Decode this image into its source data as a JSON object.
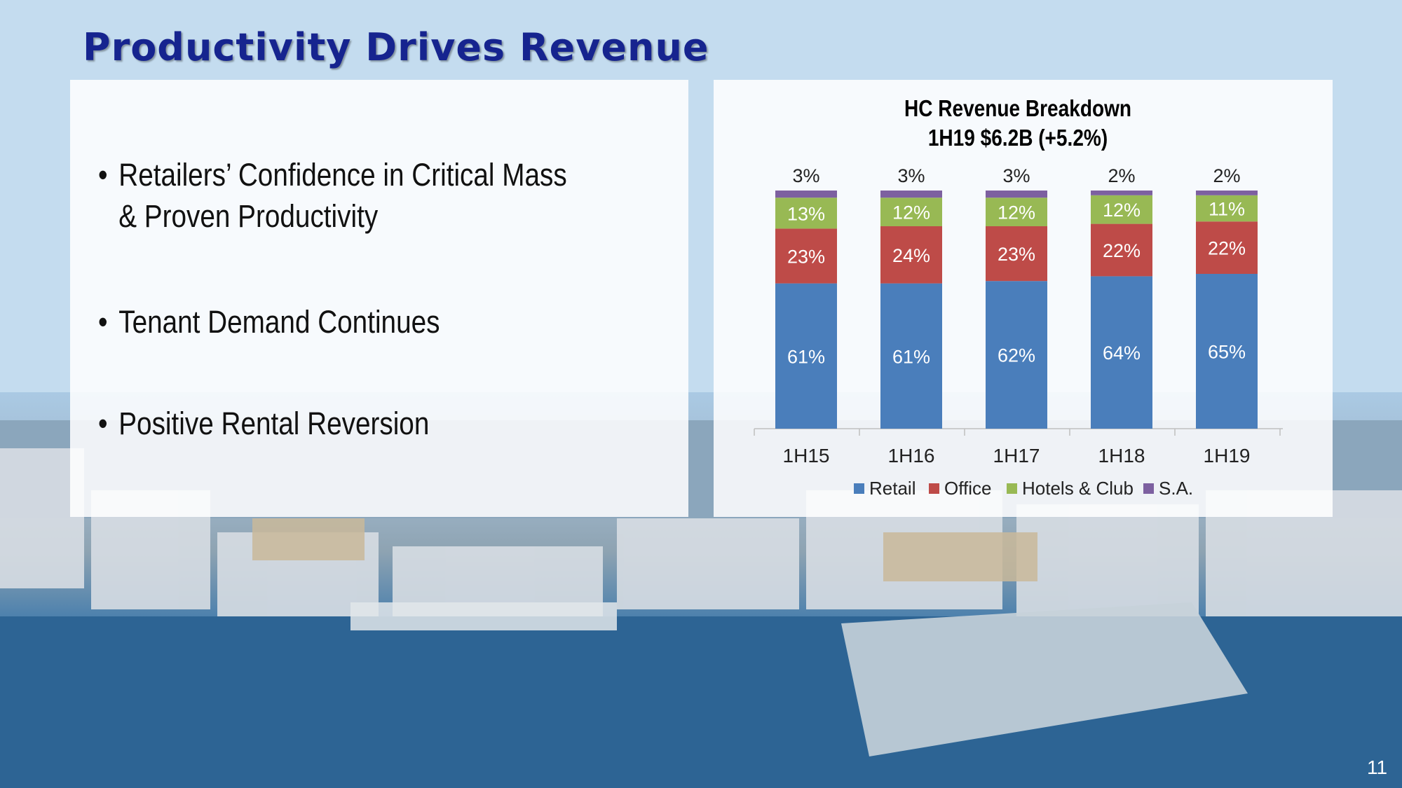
{
  "slide": {
    "title": "Productivity Drives Revenue",
    "page_number": "11"
  },
  "bullets": [
    {
      "text": "Retailers’ Confidence in Critical Mass & Proven Productivity"
    },
    {
      "text": "Tenant Demand Continues"
    },
    {
      "text": "Positive Rental Reversion"
    }
  ],
  "chart_data": {
    "type": "bar",
    "stacked": true,
    "title": "HC Revenue Breakdown",
    "subtitle": "1H19 $6.2B (+5.2%)",
    "categories": [
      "1H15",
      "1H16",
      "1H17",
      "1H18",
      "1H19"
    ],
    "value_unit": "%",
    "ylim": [
      0,
      100
    ],
    "grid": false,
    "legend_position": "bottom",
    "series": [
      {
        "name": "Retail",
        "color": "#4a7ebb",
        "values": [
          61,
          61,
          62,
          64,
          65
        ]
      },
      {
        "name": "Office",
        "color": "#be4b48",
        "values": [
          23,
          24,
          23,
          22,
          22
        ]
      },
      {
        "name": "Hotels & Club",
        "color": "#98b954",
        "values": [
          13,
          12,
          12,
          12,
          11
        ]
      },
      {
        "name": "S.A.",
        "color": "#7d60a0",
        "values": [
          3,
          3,
          3,
          2,
          2
        ]
      }
    ]
  }
}
